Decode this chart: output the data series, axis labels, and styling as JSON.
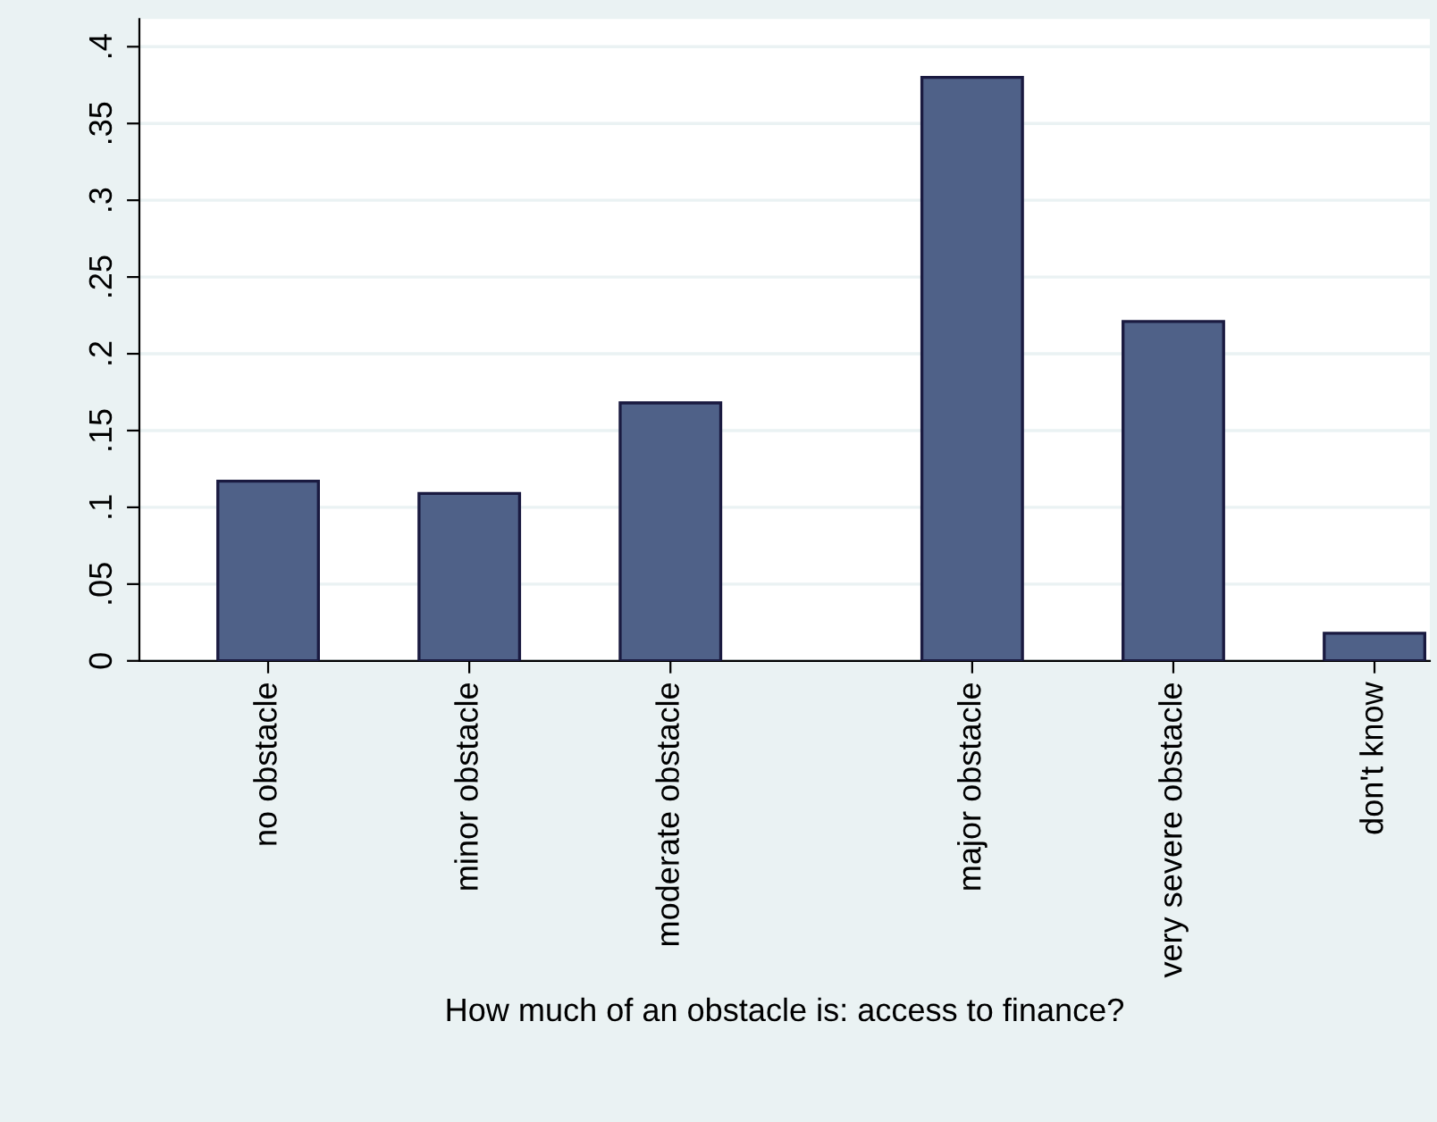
{
  "chart_data": {
    "type": "bar",
    "xlabel": "How much of an obstacle is: access to finance?",
    "categories": [
      "no obstacle",
      null,
      "minor obstacle",
      null,
      "moderate obstacle",
      null,
      null,
      "major obstacle",
      null,
      "very severe obstacle",
      null,
      "don't know"
    ],
    "values": [
      0.117,
      null,
      0.109,
      null,
      0.168,
      null,
      null,
      0.38,
      null,
      0.221,
      null,
      0.018
    ],
    "color": "#4f6188",
    "ylim": [
      0,
      0.418
    ],
    "yticks": [
      0,
      {
        "value": 0.05,
        "label": ".05"
      },
      {
        "value": 0.1,
        "label": ".1"
      },
      {
        "value": 0.15,
        "label": ".15"
      },
      {
        "value": 0.2,
        "label": ".2"
      },
      {
        "value": 0.25,
        "label": ".25"
      },
      {
        "value": 0.3,
        "label": ".3"
      },
      {
        "value": 0.35,
        "label": ".35"
      },
      {
        "value": 0.4,
        "label": ".4"
      }
    ],
    "grid": "y"
  }
}
